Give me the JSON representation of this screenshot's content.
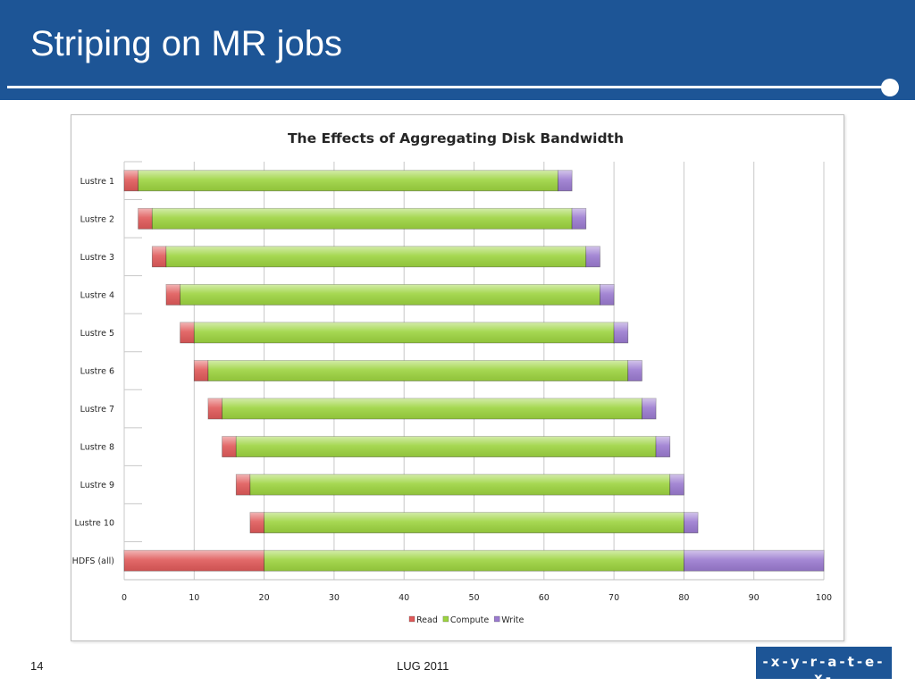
{
  "slide": {
    "title": "Striping on MR jobs",
    "page_number": "14",
    "footer_center": "LUG 2011",
    "logo_text": "-x-y-r-a-t-e-x-"
  },
  "colors": {
    "header": "#1d5596",
    "read": "#e05a5a",
    "compute": "#9dd440",
    "write": "#9b7bd0"
  },
  "chart_data": {
    "type": "bar",
    "orientation": "horizontal",
    "stacked": true,
    "title": "The Effects of Aggregating Disk Bandwidth",
    "categories": [
      "Lustre 1",
      "Lustre 2",
      "Lustre 3",
      "Lustre 4",
      "Lustre 5",
      "Lustre 6",
      "Lustre 7",
      "Lustre 8",
      "Lustre 9",
      "Lustre 10",
      "HDFS (all)"
    ],
    "offsets": [
      0,
      2,
      4,
      6,
      8,
      10,
      12,
      14,
      16,
      18,
      0
    ],
    "series": [
      {
        "name": "Read",
        "color": "#e05a5a",
        "values": [
          2,
          2,
          2,
          2,
          2,
          2,
          2,
          2,
          2,
          2,
          20
        ]
      },
      {
        "name": "Compute",
        "color": "#9dd440",
        "values": [
          60,
          60,
          60,
          60,
          60,
          60,
          60,
          60,
          60,
          60,
          60
        ]
      },
      {
        "name": "Write",
        "color": "#9b7bd0",
        "values": [
          2,
          2,
          2,
          2,
          2,
          2,
          2,
          2,
          2,
          2,
          20
        ]
      }
    ],
    "xlim": [
      0,
      100
    ],
    "xticks": [
      0,
      10,
      20,
      30,
      40,
      50,
      60,
      70,
      80,
      90,
      100
    ],
    "grid": true,
    "legend_position": "bottom"
  }
}
